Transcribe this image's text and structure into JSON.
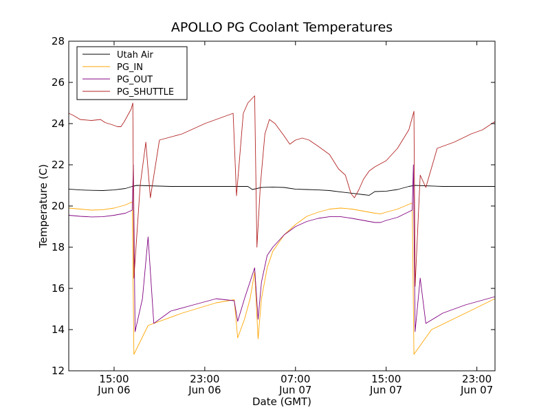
{
  "chart_data": {
    "type": "line",
    "title": "APOLLO PG Coolant Temperatures",
    "xlabel": "Date (GMT)",
    "ylabel": "Temperature (C)",
    "xlim": [
      11.0,
      48.6
    ],
    "x_units": "hours since Jun 06 00:00 GMT",
    "ylim": [
      12,
      28
    ],
    "y_ticks": [
      12,
      14,
      16,
      18,
      20,
      22,
      24,
      26,
      28
    ],
    "x_ticks": [
      {
        "x": 15,
        "line1": "15:00",
        "line2": "Jun 06"
      },
      {
        "x": 23,
        "line1": "23:00",
        "line2": "Jun 06"
      },
      {
        "x": 31,
        "line1": "07:00",
        "line2": "Jun 07"
      },
      {
        "x": 39,
        "line1": "15:00",
        "line2": "Jun 07"
      },
      {
        "x": 47,
        "line1": "23:00",
        "line2": "Jun 07"
      }
    ],
    "grid": false,
    "legend_position": "top-left",
    "series": [
      {
        "name": "Utah Air",
        "color": "#000000",
        "points": [
          [
            11.0,
            20.82
          ],
          [
            12.0,
            20.78
          ],
          [
            13.0,
            20.76
          ],
          [
            14.0,
            20.75
          ],
          [
            15.0,
            20.78
          ],
          [
            16.0,
            20.85
          ],
          [
            16.6,
            20.95
          ],
          [
            17.0,
            21.0
          ],
          [
            20.0,
            20.95
          ],
          [
            24.0,
            20.95
          ],
          [
            26.8,
            20.95
          ],
          [
            27.2,
            20.8
          ],
          [
            28.0,
            20.9
          ],
          [
            29.0,
            20.92
          ],
          [
            30.0,
            20.9
          ],
          [
            30.6,
            20.85
          ],
          [
            31.0,
            20.82
          ],
          [
            32.0,
            20.8
          ],
          [
            33.0,
            20.78
          ],
          [
            34.0,
            20.75
          ],
          [
            35.0,
            20.68
          ],
          [
            36.0,
            20.62
          ],
          [
            37.0,
            20.55
          ],
          [
            37.5,
            20.52
          ],
          [
            38.0,
            20.7
          ],
          [
            39.0,
            20.72
          ],
          [
            40.0,
            20.8
          ],
          [
            41.0,
            20.95
          ],
          [
            41.5,
            21.0
          ],
          [
            44.0,
            20.95
          ],
          [
            48.6,
            20.95
          ]
        ]
      },
      {
        "name": "PG_IN",
        "color": "#ffa500",
        "points": [
          [
            11.0,
            19.9
          ],
          [
            12.0,
            19.85
          ],
          [
            13.0,
            19.8
          ],
          [
            14.0,
            19.82
          ],
          [
            15.0,
            19.9
          ],
          [
            16.0,
            20.05
          ],
          [
            16.6,
            20.2
          ],
          [
            16.75,
            12.8
          ],
          [
            18.0,
            14.2
          ],
          [
            21.0,
            14.8
          ],
          [
            24.0,
            15.3
          ],
          [
            25.6,
            15.45
          ],
          [
            25.9,
            13.6
          ],
          [
            26.5,
            14.5
          ],
          [
            27.0,
            15.5
          ],
          [
            27.4,
            16.8
          ],
          [
            27.7,
            13.55
          ],
          [
            28.0,
            15.5
          ],
          [
            28.5,
            17.0
          ],
          [
            29.0,
            17.8
          ],
          [
            30.0,
            18.6
          ],
          [
            31.0,
            19.1
          ],
          [
            32.0,
            19.5
          ],
          [
            33.0,
            19.7
          ],
          [
            34.0,
            19.85
          ],
          [
            35.0,
            19.9
          ],
          [
            36.0,
            19.85
          ],
          [
            37.0,
            19.75
          ],
          [
            38.0,
            19.65
          ],
          [
            38.5,
            19.62
          ],
          [
            39.0,
            19.7
          ],
          [
            40.0,
            19.85
          ],
          [
            41.3,
            20.15
          ],
          [
            41.45,
            12.8
          ],
          [
            43.0,
            14.0
          ],
          [
            46.0,
            14.8
          ],
          [
            48.6,
            15.5
          ]
        ]
      },
      {
        "name": "PG_OUT",
        "color": "#800080",
        "points": [
          [
            11.0,
            19.55
          ],
          [
            12.0,
            19.5
          ],
          [
            13.0,
            19.47
          ],
          [
            14.0,
            19.48
          ],
          [
            15.0,
            19.55
          ],
          [
            16.0,
            19.65
          ],
          [
            16.6,
            19.8
          ],
          [
            16.7,
            22.0
          ],
          [
            16.85,
            13.9
          ],
          [
            17.5,
            15.5
          ],
          [
            18.0,
            18.5
          ],
          [
            18.5,
            14.3
          ],
          [
            20.0,
            14.9
          ],
          [
            22.0,
            15.2
          ],
          [
            24.0,
            15.5
          ],
          [
            25.6,
            15.4
          ],
          [
            25.9,
            14.4
          ],
          [
            26.5,
            15.5
          ],
          [
            27.4,
            17.0
          ],
          [
            27.7,
            14.5
          ],
          [
            28.0,
            16.3
          ],
          [
            28.5,
            17.6
          ],
          [
            29.0,
            18.0
          ],
          [
            30.0,
            18.6
          ],
          [
            31.0,
            19.0
          ],
          [
            32.0,
            19.25
          ],
          [
            33.0,
            19.4
          ],
          [
            34.0,
            19.48
          ],
          [
            35.0,
            19.48
          ],
          [
            36.0,
            19.4
          ],
          [
            37.0,
            19.3
          ],
          [
            38.0,
            19.2
          ],
          [
            38.5,
            19.2
          ],
          [
            39.0,
            19.3
          ],
          [
            40.0,
            19.45
          ],
          [
            41.3,
            19.8
          ],
          [
            41.4,
            22.0
          ],
          [
            41.55,
            13.9
          ],
          [
            42.0,
            16.5
          ],
          [
            42.5,
            14.3
          ],
          [
            44.0,
            14.8
          ],
          [
            46.0,
            15.2
          ],
          [
            48.6,
            15.6
          ]
        ]
      },
      {
        "name": "PG_SHUTTLE",
        "color": "#b22222",
        "points": [
          [
            11.0,
            24.5
          ],
          [
            11.4,
            24.4
          ],
          [
            12.0,
            24.2
          ],
          [
            13.0,
            24.15
          ],
          [
            13.8,
            24.2
          ],
          [
            14.2,
            24.05
          ],
          [
            14.8,
            23.95
          ],
          [
            15.3,
            23.85
          ],
          [
            15.6,
            23.85
          ],
          [
            15.9,
            24.1
          ],
          [
            16.5,
            24.7
          ],
          [
            16.65,
            25.0
          ],
          [
            16.75,
            16.5
          ],
          [
            17.3,
            21.0
          ],
          [
            17.8,
            23.1
          ],
          [
            18.2,
            20.4
          ],
          [
            19.0,
            23.2
          ],
          [
            21.0,
            23.5
          ],
          [
            23.0,
            24.0
          ],
          [
            24.5,
            24.3
          ],
          [
            25.5,
            24.5
          ],
          [
            25.8,
            20.5
          ],
          [
            26.4,
            24.5
          ],
          [
            26.8,
            25.0
          ],
          [
            27.4,
            25.35
          ],
          [
            27.6,
            18.0
          ],
          [
            27.9,
            21.0
          ],
          [
            28.3,
            23.5
          ],
          [
            28.7,
            24.2
          ],
          [
            29.2,
            24.0
          ],
          [
            30.0,
            23.4
          ],
          [
            30.5,
            23.0
          ],
          [
            31.0,
            23.2
          ],
          [
            31.6,
            23.3
          ],
          [
            32.2,
            23.2
          ],
          [
            33.0,
            22.9
          ],
          [
            34.0,
            22.5
          ],
          [
            34.8,
            21.8
          ],
          [
            35.4,
            21.5
          ],
          [
            35.9,
            20.6
          ],
          [
            36.2,
            20.4
          ],
          [
            36.6,
            20.8
          ],
          [
            37.0,
            21.3
          ],
          [
            37.5,
            21.7
          ],
          [
            38.0,
            21.9
          ],
          [
            39.0,
            22.2
          ],
          [
            40.0,
            22.8
          ],
          [
            41.0,
            23.7
          ],
          [
            41.35,
            24.4
          ],
          [
            41.45,
            24.6
          ],
          [
            41.55,
            16.1
          ],
          [
            42.0,
            21.5
          ],
          [
            42.5,
            20.9
          ],
          [
            43.5,
            22.8
          ],
          [
            45.0,
            23.1
          ],
          [
            46.5,
            23.5
          ],
          [
            47.5,
            23.7
          ],
          [
            48.6,
            24.1
          ]
        ]
      }
    ]
  }
}
